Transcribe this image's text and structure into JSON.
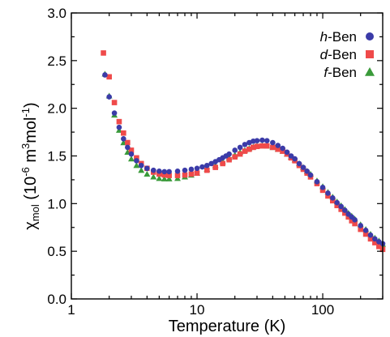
{
  "chart_data": {
    "type": "scatter",
    "xlabel": "Temperature (K)",
    "ylabel": {
      "prefix": "χ",
      "subscript": "mol",
      "paren_open": " (10",
      "exp1": "-6",
      "middle": " m",
      "exp2": "3",
      "mol": "mol",
      "exp3": "-1",
      "paren_close": ")"
    },
    "x_scale": "log",
    "xlim": [
      1,
      300
    ],
    "ylim": [
      0,
      3.0
    ],
    "x_ticks": [
      {
        "value": 1,
        "label": "1"
      },
      {
        "value": 10,
        "label": "10"
      },
      {
        "value": 100,
        "label": "100"
      }
    ],
    "y_ticks": [
      {
        "value": 0.0,
        "label": "0.0"
      },
      {
        "value": 0.5,
        "label": "0.5"
      },
      {
        "value": 1.0,
        "label": "1.0"
      },
      {
        "value": 1.5,
        "label": "1.5"
      },
      {
        "value": 2.0,
        "label": "2.0"
      },
      {
        "value": 2.5,
        "label": "2.5"
      },
      {
        "value": 3.0,
        "label": "3.0"
      }
    ],
    "legend_position": "top-right",
    "series": [
      {
        "name": "h-Ben",
        "name_italic": "h",
        "name_rest": "-Ben",
        "marker": "circle",
        "color": "#3b3ba8",
        "points": [
          [
            1.85,
            2.35
          ],
          [
            2.0,
            2.12
          ],
          [
            2.2,
            1.95
          ],
          [
            2.4,
            1.8
          ],
          [
            2.6,
            1.68
          ],
          [
            2.8,
            1.59
          ],
          [
            3.0,
            1.52
          ],
          [
            3.3,
            1.45
          ],
          [
            3.6,
            1.4
          ],
          [
            4.0,
            1.37
          ],
          [
            4.5,
            1.35
          ],
          [
            5.0,
            1.34
          ],
          [
            5.5,
            1.335
          ],
          [
            6.0,
            1.335
          ],
          [
            7.0,
            1.34
          ],
          [
            8.0,
            1.35
          ],
          [
            9.0,
            1.36
          ],
          [
            10,
            1.37
          ],
          [
            11,
            1.385
          ],
          [
            12,
            1.4
          ],
          [
            13,
            1.42
          ],
          [
            14,
            1.44
          ],
          [
            15,
            1.46
          ],
          [
            16,
            1.48
          ],
          [
            17,
            1.5
          ],
          [
            18,
            1.52
          ],
          [
            20,
            1.56
          ],
          [
            22,
            1.59
          ],
          [
            24,
            1.62
          ],
          [
            26,
            1.64
          ],
          [
            28,
            1.655
          ],
          [
            30,
            1.66
          ],
          [
            33,
            1.665
          ],
          [
            36,
            1.66
          ],
          [
            40,
            1.64
          ],
          [
            44,
            1.61
          ],
          [
            48,
            1.58
          ],
          [
            52,
            1.54
          ],
          [
            56,
            1.5
          ],
          [
            60,
            1.47
          ],
          [
            65,
            1.42
          ],
          [
            70,
            1.38
          ],
          [
            75,
            1.34
          ],
          [
            80,
            1.3
          ],
          [
            90,
            1.23
          ],
          [
            100,
            1.17
          ],
          [
            110,
            1.11
          ],
          [
            120,
            1.06
          ],
          [
            130,
            1.01
          ],
          [
            140,
            0.97
          ],
          [
            150,
            0.93
          ],
          [
            160,
            0.89
          ],
          [
            170,
            0.86
          ],
          [
            180,
            0.83
          ],
          [
            200,
            0.77
          ],
          [
            220,
            0.72
          ],
          [
            240,
            0.67
          ],
          [
            260,
            0.63
          ],
          [
            280,
            0.6
          ],
          [
            300,
            0.58
          ]
        ]
      },
      {
        "name": "d-Ben",
        "name_italic": "d",
        "name_rest": "-Ben",
        "marker": "square",
        "color": "#ef4a4a",
        "points": [
          [
            1.8,
            2.58
          ],
          [
            2.0,
            2.33
          ],
          [
            2.2,
            2.06
          ],
          [
            2.4,
            1.86
          ],
          [
            2.6,
            1.74
          ],
          [
            2.8,
            1.64
          ],
          [
            3.0,
            1.56
          ],
          [
            3.3,
            1.48
          ],
          [
            3.6,
            1.42
          ],
          [
            4.0,
            1.37
          ],
          [
            4.5,
            1.33
          ],
          [
            5.0,
            1.31
          ],
          [
            5.5,
            1.3
          ],
          [
            6.0,
            1.295
          ],
          [
            7.0,
            1.295
          ],
          [
            8.0,
            1.3
          ],
          [
            9.0,
            1.31
          ],
          [
            10,
            1.32
          ],
          [
            12,
            1.35
          ],
          [
            14,
            1.38
          ],
          [
            16,
            1.42
          ],
          [
            18,
            1.46
          ],
          [
            20,
            1.49
          ],
          [
            22,
            1.52
          ],
          [
            24,
            1.55
          ],
          [
            26,
            1.57
          ],
          [
            28,
            1.59
          ],
          [
            30,
            1.6
          ],
          [
            33,
            1.605
          ],
          [
            36,
            1.605
          ],
          [
            40,
            1.59
          ],
          [
            44,
            1.57
          ],
          [
            48,
            1.55
          ],
          [
            52,
            1.52
          ],
          [
            56,
            1.48
          ],
          [
            60,
            1.45
          ],
          [
            65,
            1.4
          ],
          [
            70,
            1.36
          ],
          [
            75,
            1.32
          ],
          [
            80,
            1.28
          ],
          [
            90,
            1.21
          ],
          [
            100,
            1.14
          ],
          [
            110,
            1.08
          ],
          [
            120,
            1.03
          ],
          [
            130,
            0.98
          ],
          [
            140,
            0.94
          ],
          [
            150,
            0.9
          ],
          [
            160,
            0.86
          ],
          [
            170,
            0.82
          ],
          [
            180,
            0.79
          ],
          [
            200,
            0.73
          ],
          [
            220,
            0.68
          ],
          [
            240,
            0.63
          ],
          [
            260,
            0.59
          ],
          [
            280,
            0.55
          ],
          [
            300,
            0.52
          ]
        ]
      },
      {
        "name": "f-Ben",
        "name_italic": "f",
        "name_rest": "-Ben",
        "marker": "triangle",
        "color": "#3a9a3a",
        "points": [
          [
            1.85,
            2.36
          ],
          [
            2.0,
            2.13
          ],
          [
            2.2,
            1.93
          ],
          [
            2.4,
            1.77
          ],
          [
            2.6,
            1.64
          ],
          [
            2.8,
            1.54
          ],
          [
            3.0,
            1.47
          ],
          [
            3.3,
            1.4
          ],
          [
            3.6,
            1.35
          ],
          [
            4.0,
            1.31
          ],
          [
            4.5,
            1.28
          ],
          [
            5.0,
            1.265
          ],
          [
            5.5,
            1.26
          ],
          [
            6.0,
            1.26
          ],
          [
            7.0,
            1.265
          ],
          [
            8.0,
            1.28
          ],
          [
            9.0,
            1.3
          ],
          [
            10,
            1.32
          ],
          [
            12,
            1.36
          ],
          [
            14,
            1.4
          ],
          [
            16,
            1.44
          ],
          [
            18,
            1.48
          ],
          [
            20,
            1.51
          ],
          [
            22,
            1.54
          ],
          [
            24,
            1.56
          ],
          [
            26,
            1.58
          ],
          [
            28,
            1.595
          ],
          [
            30,
            1.605
          ],
          [
            33,
            1.61
          ],
          [
            36,
            1.605
          ],
          [
            40,
            1.59
          ],
          [
            44,
            1.57
          ],
          [
            48,
            1.55
          ],
          [
            52,
            1.52
          ],
          [
            56,
            1.49
          ],
          [
            60,
            1.46
          ],
          [
            65,
            1.42
          ],
          [
            70,
            1.38
          ],
          [
            75,
            1.34
          ],
          [
            80,
            1.31
          ],
          [
            90,
            1.24
          ],
          [
            100,
            1.18
          ],
          [
            110,
            1.12
          ],
          [
            120,
            1.07
          ],
          [
            130,
            1.02
          ],
          [
            140,
            0.98
          ],
          [
            150,
            0.94
          ],
          [
            160,
            0.9
          ],
          [
            170,
            0.87
          ],
          [
            180,
            0.84
          ],
          [
            200,
            0.78
          ],
          [
            220,
            0.73
          ],
          [
            240,
            0.68
          ],
          [
            260,
            0.64
          ],
          [
            280,
            0.61
          ],
          [
            300,
            0.575
          ]
        ]
      }
    ]
  }
}
